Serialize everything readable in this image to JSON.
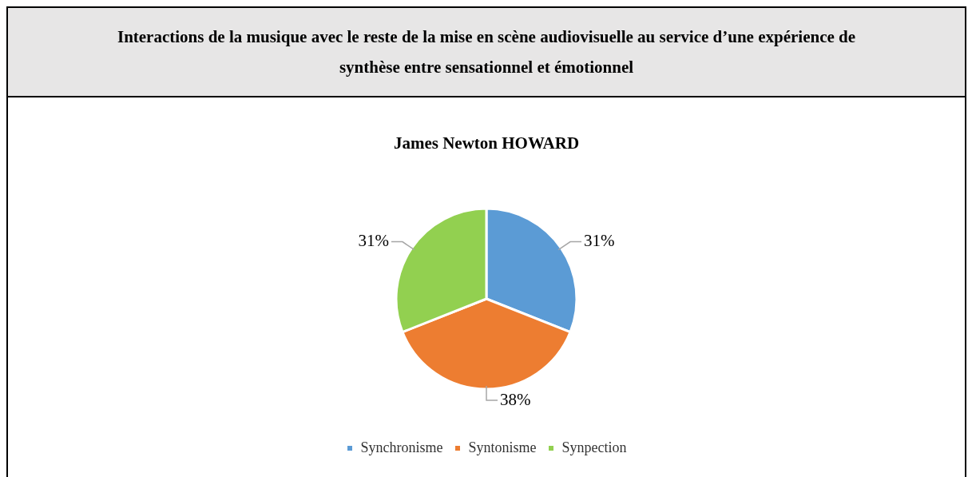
{
  "chart_data": {
    "type": "pie",
    "title": "Interactions de la musique avec le reste de la mise en scène audiovisuelle au service d’une expérience de synthèse entre sensationnel et émotionnel",
    "subtitle": "James Newton HOWARD",
    "categories": [
      "Synchronisme",
      "Syntonisme",
      "Synpection"
    ],
    "values": [
      31,
      38,
      31
    ],
    "colors": [
      "#5b9bd5",
      "#ed7d31",
      "#92d050"
    ],
    "value_labels": [
      "31%",
      "38%",
      "31%"
    ],
    "legend": "bottom"
  }
}
